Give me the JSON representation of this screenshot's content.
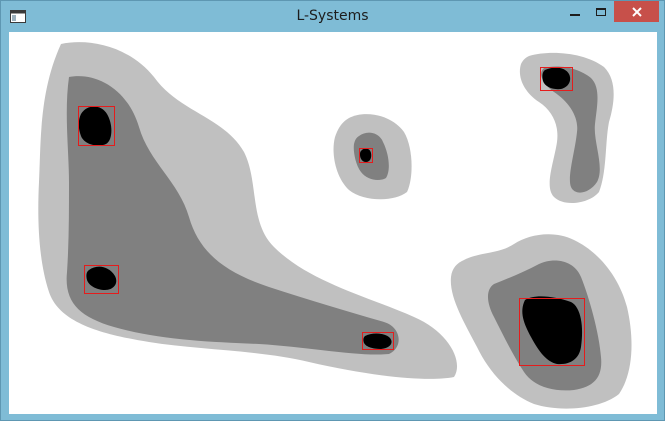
{
  "window": {
    "title": "L-Systems",
    "app_icon": "window-app-icon",
    "controls": {
      "minimize_icon": "minimize-icon",
      "maximize_icon": "maximize-icon",
      "close_icon": "close-icon"
    },
    "colors": {
      "frame": "#7fbcd6",
      "close_button": "#c7504a",
      "canvas_background": "#ffffff",
      "outer_region": "#c0c0c0",
      "middle_region": "#808080",
      "core_region": "#000000",
      "marker_box": "#e51c1c"
    }
  },
  "canvas": {
    "regions": [
      "region-large-left",
      "region-small-center",
      "region-top-right",
      "region-bottom-right"
    ],
    "marker_count": 6
  }
}
